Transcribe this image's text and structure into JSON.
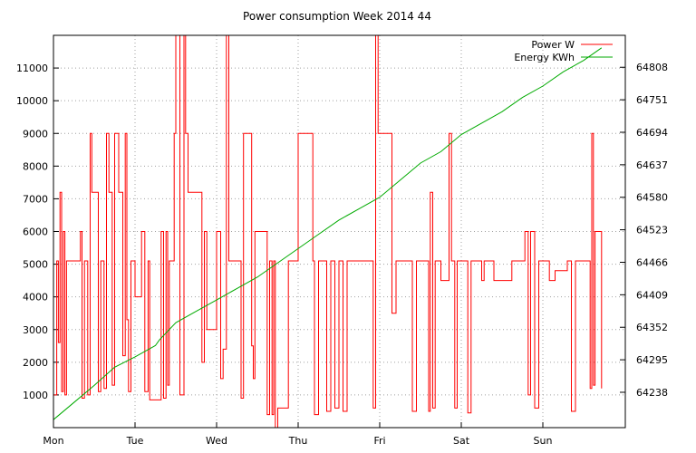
{
  "chart_data": {
    "type": "line",
    "title": "Power consumption Week 2014 44",
    "x_ticks": [
      "Mon",
      "Tue",
      "Wed",
      "Thu",
      "Fri",
      "Sat",
      "Sun"
    ],
    "x_range": [
      0,
      7
    ],
    "ylim_left": [
      0,
      12000
    ],
    "y_ticks_left": [
      1000,
      2000,
      3000,
      4000,
      5000,
      6000,
      7000,
      8000,
      9000,
      10000,
      11000
    ],
    "ylim_right": [
      64176,
      64864
    ],
    "y_ticks_right": [
      64238,
      64295,
      64352,
      64409,
      64466,
      64523,
      64580,
      64637,
      64694,
      64751,
      64808
    ],
    "grid": true,
    "legend_position": "top-right",
    "colors": {
      "power": "#ff0000",
      "energy": "#00aa00"
    },
    "series": [
      {
        "name": "Power W",
        "axis": "left",
        "points": [
          [
            0.0,
            1000
          ],
          [
            0.04,
            5100
          ],
          [
            0.06,
            2600
          ],
          [
            0.08,
            7200
          ],
          [
            0.1,
            1100
          ],
          [
            0.12,
            6000
          ],
          [
            0.14,
            1000
          ],
          [
            0.16,
            5100
          ],
          [
            0.2,
            5100
          ],
          [
            0.3,
            5100
          ],
          [
            0.33,
            6000
          ],
          [
            0.35,
            900
          ],
          [
            0.38,
            5100
          ],
          [
            0.42,
            1000
          ],
          [
            0.45,
            9000
          ],
          [
            0.47,
            7200
          ],
          [
            0.52,
            7200
          ],
          [
            0.55,
            1100
          ],
          [
            0.58,
            5100
          ],
          [
            0.62,
            1200
          ],
          [
            0.65,
            9000
          ],
          [
            0.68,
            7200
          ],
          [
            0.72,
            1300
          ],
          [
            0.75,
            9000
          ],
          [
            0.8,
            7200
          ],
          [
            0.85,
            2200
          ],
          [
            0.88,
            9000
          ],
          [
            0.9,
            3300
          ],
          [
            0.92,
            1100
          ],
          [
            0.95,
            5100
          ],
          [
            1.0,
            4000
          ],
          [
            1.05,
            4000
          ],
          [
            1.08,
            6000
          ],
          [
            1.12,
            1100
          ],
          [
            1.16,
            5100
          ],
          [
            1.18,
            850
          ],
          [
            1.25,
            850
          ],
          [
            1.3,
            850
          ],
          [
            1.32,
            6000
          ],
          [
            1.35,
            900
          ],
          [
            1.38,
            6000
          ],
          [
            1.4,
            1300
          ],
          [
            1.42,
            5100
          ],
          [
            1.45,
            5100
          ],
          [
            1.48,
            9000
          ],
          [
            1.5,
            12000
          ],
          [
            1.55,
            1000
          ],
          [
            1.6,
            12000
          ],
          [
            1.62,
            9000
          ],
          [
            1.65,
            7200
          ],
          [
            1.7,
            7200
          ],
          [
            1.8,
            7200
          ],
          [
            1.82,
            2000
          ],
          [
            1.85,
            6000
          ],
          [
            1.88,
            3000
          ],
          [
            1.95,
            3000
          ],
          [
            2.0,
            6000
          ],
          [
            2.05,
            1500
          ],
          [
            2.08,
            2400
          ],
          [
            2.12,
            12000
          ],
          [
            2.15,
            5100
          ],
          [
            2.25,
            5100
          ],
          [
            2.3,
            900
          ],
          [
            2.33,
            9000
          ],
          [
            2.4,
            9000
          ],
          [
            2.43,
            2500
          ],
          [
            2.45,
            1500
          ],
          [
            2.47,
            6000
          ],
          [
            2.6,
            6000
          ],
          [
            2.62,
            400
          ],
          [
            2.65,
            5100
          ],
          [
            2.68,
            400
          ],
          [
            2.7,
            5100
          ],
          [
            2.72,
            0
          ],
          [
            2.75,
            600
          ],
          [
            2.85,
            600
          ],
          [
            2.88,
            5100
          ],
          [
            2.95,
            5100
          ],
          [
            3.0,
            9000
          ],
          [
            3.15,
            9000
          ],
          [
            3.18,
            5100
          ],
          [
            3.2,
            400
          ],
          [
            3.25,
            5100
          ],
          [
            3.3,
            5100
          ],
          [
            3.35,
            500
          ],
          [
            3.4,
            5100
          ],
          [
            3.45,
            600
          ],
          [
            3.5,
            5100
          ],
          [
            3.55,
            500
          ],
          [
            3.6,
            5100
          ],
          [
            3.7,
            5100
          ],
          [
            3.9,
            5100
          ],
          [
            3.92,
            600
          ],
          [
            3.95,
            12000
          ],
          [
            3.98,
            9000
          ],
          [
            4.1,
            9000
          ],
          [
            4.15,
            3500
          ],
          [
            4.2,
            5100
          ],
          [
            4.3,
            5100
          ],
          [
            4.4,
            500
          ],
          [
            4.45,
            5100
          ],
          [
            4.55,
            5100
          ],
          [
            4.6,
            500
          ],
          [
            4.62,
            7200
          ],
          [
            4.65,
            600
          ],
          [
            4.68,
            5100
          ],
          [
            4.75,
            4500
          ],
          [
            4.85,
            9000
          ],
          [
            4.88,
            5100
          ],
          [
            4.92,
            600
          ],
          [
            4.95,
            5100
          ],
          [
            5.05,
            5100
          ],
          [
            5.08,
            450
          ],
          [
            5.12,
            5100
          ],
          [
            5.2,
            5100
          ],
          [
            5.25,
            4500
          ],
          [
            5.28,
            5100
          ],
          [
            5.35,
            5100
          ],
          [
            5.4,
            4500
          ],
          [
            5.45,
            4500
          ],
          [
            5.6,
            4500
          ],
          [
            5.62,
            5100
          ],
          [
            5.75,
            5100
          ],
          [
            5.78,
            6000
          ],
          [
            5.82,
            1000
          ],
          [
            5.85,
            6000
          ],
          [
            5.9,
            600
          ],
          [
            5.95,
            5100
          ],
          [
            6.05,
            5100
          ],
          [
            6.08,
            4500
          ],
          [
            6.15,
            4800
          ],
          [
            6.25,
            4800
          ],
          [
            6.3,
            5100
          ],
          [
            6.35,
            500
          ],
          [
            6.4,
            5100
          ],
          [
            6.55,
            5100
          ],
          [
            6.58,
            1200
          ],
          [
            6.6,
            9000
          ],
          [
            6.62,
            1300
          ],
          [
            6.64,
            6000
          ],
          [
            6.7,
            6000
          ],
          [
            6.72,
            1200
          ]
        ]
      },
      {
        "name": "Energy KWh",
        "axis": "right",
        "points": [
          [
            0.0,
            64190
          ],
          [
            0.25,
            64220
          ],
          [
            0.5,
            64250
          ],
          [
            0.75,
            64282
          ],
          [
            1.0,
            64300
          ],
          [
            1.25,
            64320
          ],
          [
            1.3,
            64330
          ],
          [
            1.5,
            64360
          ],
          [
            1.75,
            64380
          ],
          [
            2.0,
            64400
          ],
          [
            2.25,
            64420
          ],
          [
            2.5,
            64440
          ],
          [
            2.75,
            64465
          ],
          [
            3.0,
            64490
          ],
          [
            3.25,
            64515
          ],
          [
            3.5,
            64540
          ],
          [
            3.75,
            64560
          ],
          [
            4.0,
            64580
          ],
          [
            4.25,
            64610
          ],
          [
            4.5,
            64640
          ],
          [
            4.75,
            64660
          ],
          [
            5.0,
            64690
          ],
          [
            5.25,
            64710
          ],
          [
            5.5,
            64730
          ],
          [
            5.75,
            64755
          ],
          [
            6.0,
            64775
          ],
          [
            6.25,
            64800
          ],
          [
            6.5,
            64820
          ],
          [
            6.72,
            64842
          ]
        ]
      }
    ]
  }
}
